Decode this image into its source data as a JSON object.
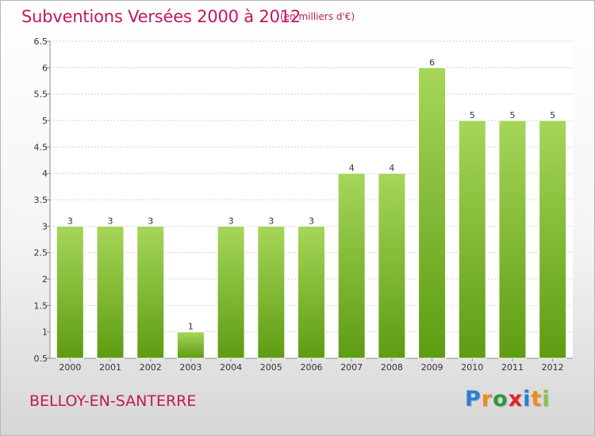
{
  "header": {
    "title": "Subventions Versées 2000 à 2012",
    "subtitle": "(en milliers d'€)"
  },
  "footer": {
    "commune": "BELLOY-EN-SANTERRE",
    "logo": {
      "letters": [
        "P",
        "r",
        "o",
        "x",
        "i",
        "t",
        "i"
      ],
      "colors": [
        "#2b7fd6",
        "#f08a1c",
        "#2b9a3a",
        "#e02424",
        "#2b7fd6",
        "#f08a1c",
        "#8bc34a"
      ]
    }
  },
  "colors": {
    "bar_top": "#a6d65a",
    "bar_bottom": "#5e9c12",
    "grid": "#d0d0d0",
    "axis_text": "#333333",
    "title": "#c0175d"
  },
  "chart_data": {
    "type": "bar",
    "title": "Subventions Versées 2000 à 2012",
    "subtitle": "(en milliers d'€)",
    "xlabel": "",
    "ylabel": "",
    "categories": [
      "2000",
      "2001",
      "2002",
      "2003",
      "2004",
      "2005",
      "2006",
      "2007",
      "2008",
      "2009",
      "2010",
      "2011",
      "2012"
    ],
    "values": [
      3,
      3,
      3,
      1,
      3,
      3,
      3,
      4,
      4,
      6,
      5,
      5,
      5
    ],
    "data_labels": [
      "3",
      "3",
      "3",
      "1",
      "3",
      "3",
      "3",
      "4",
      "4",
      "6",
      "5",
      "5",
      "5"
    ],
    "ylim": [
      0.5,
      6.5
    ],
    "yticks": [
      0.5,
      1,
      1.5,
      2,
      2.5,
      3,
      3.5,
      4,
      4.5,
      5,
      5.5,
      6,
      6.5
    ],
    "ytick_labels": [
      "0.5",
      "1",
      "1.5",
      "2",
      "2.5",
      "3",
      "3.5",
      "4",
      "4.5",
      "5",
      "5.5",
      "6",
      "6.5"
    ],
    "grid": true,
    "legend": "none"
  }
}
